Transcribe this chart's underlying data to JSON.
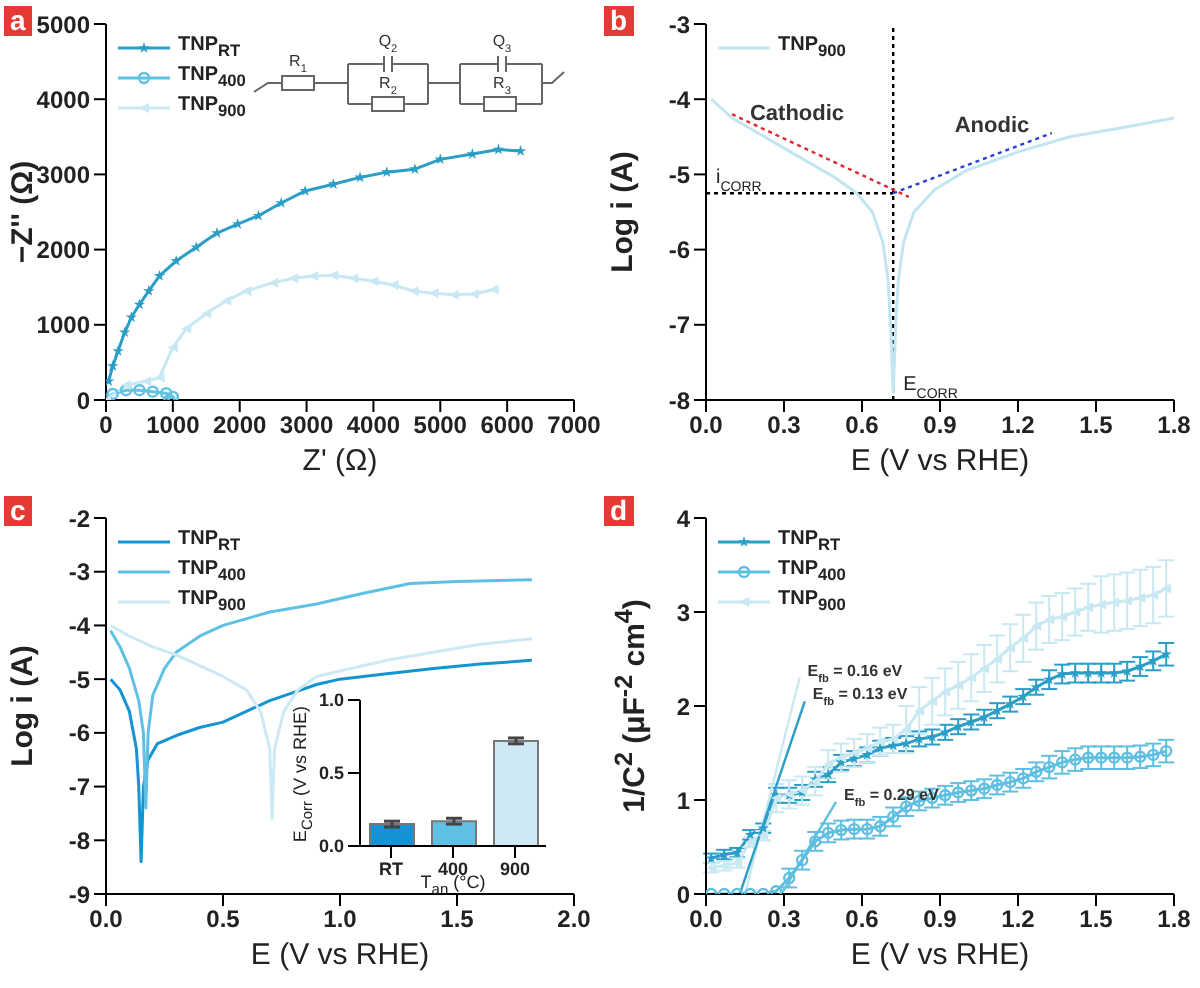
{
  "chart_data": [
    {
      "type": "line",
      "title": "a",
      "xlabel": "Z' (Ω)",
      "ylabel": "−Z'' (Ω)",
      "xlim": [
        0,
        7000
      ],
      "xticks": [
        0,
        1000,
        2000,
        3000,
        4000,
        5000,
        6000,
        7000
      ],
      "ylim": [
        0,
        5000
      ],
      "yticks": [
        0,
        1000,
        2000,
        3000,
        4000,
        5000
      ],
      "legend": "top left",
      "annotations": [
        "R$_{1}$",
        "Q$_{2}$",
        "R$_{2}$",
        "Q$_{3}$",
        "R$_{3}$"
      ],
      "series": [
        {
          "name": "TNP$_{RT}$",
          "color": "#2a9ec6",
          "marker": "star",
          "x": [
            40,
            100,
            180,
            280,
            380,
            500,
            640,
            800,
            1050,
            1350,
            1660,
            1970,
            2280,
            2620,
            2980,
            3400,
            3800,
            4200,
            4620,
            5000,
            5480,
            5870,
            6200
          ],
          "values": [
            250,
            450,
            650,
            900,
            1100,
            1270,
            1450,
            1650,
            1850,
            2030,
            2220,
            2340,
            2450,
            2620,
            2780,
            2870,
            2960,
            3030,
            3070,
            3200,
            3270,
            3330,
            3310
          ]
        },
        {
          "name": "TNP$_{400}$",
          "color": "#62c2e2",
          "marker": "circle",
          "x": [
            0,
            100,
            300,
            500,
            700,
            900,
            1000,
            950
          ],
          "values": [
            0,
            80,
            130,
            130,
            110,
            90,
            40,
            0
          ]
        },
        {
          "name": "TNP$_{900}$",
          "color": "#c8e9f3",
          "marker": "triangle",
          "x": [
            0,
            300,
            600,
            800,
            1000,
            1200,
            1500,
            1800,
            2100,
            2500,
            2800,
            3100,
            3400,
            3700,
            4000,
            4300,
            4600,
            4900,
            5200,
            5500,
            5800
          ],
          "values": [
            0,
            200,
            250,
            300,
            700,
            950,
            1150,
            1320,
            1450,
            1560,
            1620,
            1650,
            1660,
            1620,
            1580,
            1530,
            1450,
            1420,
            1400,
            1410,
            1470
          ]
        }
      ]
    },
    {
      "type": "line",
      "title": "b",
      "xlabel": "E (V vs RHE)",
      "ylabel": "Log i (A)",
      "xlim": [
        0,
        1.8
      ],
      "xticks": [
        {
          "value": 0,
          "label": "0.0"
        },
        0.3,
        0.6,
        0.9,
        1.2,
        1.5,
        1.8
      ],
      "ylim": [
        -8,
        -3
      ],
      "yticks": [
        -8,
        -7,
        -6,
        -5,
        -4,
        -3
      ],
      "legend": "top left",
      "annotations": [
        {
          "text": "Cathodic",
          "x": 0.35,
          "y": -4.6
        },
        {
          "text": "Anodic",
          "x": 1.1,
          "y": -4.75
        }
      ],
      "ref_lines": [
        {
          "axis": "x",
          "value": 0.72,
          "label": "E$_{CORR}$",
          "color": "#000000",
          "line_style": "dotted"
        },
        {
          "axis": "y",
          "value": -5.25,
          "label": "i$_{CORR}$",
          "color": "#000000",
          "line_style": "dotted"
        }
      ],
      "series": [
        {
          "name": "TNP$_{900}$",
          "color": "#c2e6f1",
          "x": [
            0.02,
            0.1,
            0.2,
            0.3,
            0.4,
            0.5,
            0.58,
            0.64,
            0.68,
            0.7,
            0.71,
            0.72,
            0.73,
            0.74,
            0.76,
            0.8,
            0.88,
            1.0,
            1.2,
            1.4,
            1.6,
            1.8
          ],
          "values": [
            -4.0,
            -4.25,
            -4.45,
            -4.65,
            -4.85,
            -5.05,
            -5.25,
            -5.5,
            -5.9,
            -6.4,
            -7.0,
            -7.9,
            -7.0,
            -6.4,
            -5.9,
            -5.5,
            -5.2,
            -4.95,
            -4.7,
            -4.5,
            -4.38,
            -4.25
          ]
        },
        {
          "color": "#e0282e",
          "line_style": "dotted",
          "x": [
            0.1,
            0.78
          ],
          "values": [
            -4.2,
            -5.3
          ]
        },
        {
          "color": "#2b3fd6",
          "line_style": "dotted",
          "x": [
            0.72,
            1.33
          ],
          "values": [
            -5.25,
            -4.45
          ]
        }
      ]
    },
    {
      "type": "line",
      "title": "c",
      "xlabel": "E (V vs RHE)",
      "ylabel": "Log i (A)",
      "xlim": [
        0,
        2
      ],
      "xticks": [
        {
          "value": 0,
          "label": "0.0"
        },
        0.5,
        {
          "value": 1,
          "label": "1.0"
        },
        1.5,
        {
          "value": 2,
          "label": "2.0"
        }
      ],
      "ylim": [
        -9,
        -2
      ],
      "yticks": [
        -9,
        -8,
        -7,
        -6,
        -5,
        -4,
        -3,
        -2
      ],
      "legend": "top left",
      "series": [
        {
          "name": "TNP$_{RT}$",
          "color": "#1494d2",
          "x": [
            0.02,
            0.06,
            0.1,
            0.13,
            0.14,
            0.15,
            0.16,
            0.18,
            0.22,
            0.3,
            0.4,
            0.5,
            0.6,
            0.7,
            0.8,
            0.9,
            1.0,
            1.2,
            1.4,
            1.6,
            1.82
          ],
          "values": [
            -5.0,
            -5.2,
            -5.6,
            -6.3,
            -7.0,
            -8.4,
            -7.0,
            -6.5,
            -6.2,
            -6.05,
            -5.9,
            -5.8,
            -5.6,
            -5.4,
            -5.25,
            -5.1,
            -5.0,
            -4.9,
            -4.8,
            -4.72,
            -4.65
          ]
        },
        {
          "name": "TNP$_{400}$",
          "color": "#5fc0e6",
          "x": [
            0.02,
            0.06,
            0.1,
            0.14,
            0.16,
            0.17,
            0.18,
            0.2,
            0.25,
            0.3,
            0.4,
            0.5,
            0.7,
            0.9,
            1.1,
            1.3,
            1.5,
            1.82
          ],
          "values": [
            -4.1,
            -4.4,
            -4.8,
            -5.4,
            -6.0,
            -7.4,
            -6.0,
            -5.3,
            -4.8,
            -4.5,
            -4.2,
            -4.0,
            -3.75,
            -3.6,
            -3.4,
            -3.22,
            -3.18,
            -3.15
          ]
        },
        {
          "name": "TNP$_{900}$",
          "color": "#cde9f3",
          "x": [
            0.02,
            0.1,
            0.2,
            0.3,
            0.4,
            0.5,
            0.6,
            0.66,
            0.7,
            0.71,
            0.72,
            0.76,
            0.82,
            0.9,
            1.0,
            1.2,
            1.4,
            1.6,
            1.82
          ],
          "values": [
            -4.0,
            -4.2,
            -4.4,
            -4.55,
            -4.75,
            -4.95,
            -5.2,
            -5.6,
            -6.3,
            -7.6,
            -6.3,
            -5.6,
            -5.2,
            -4.95,
            -4.85,
            -4.65,
            -4.5,
            -4.35,
            -4.25
          ]
        }
      ]
    },
    {
      "type": "bar",
      "xlabel": "T$_{an}$ (°C)",
      "ylabel": "E$_{Corr}$ (V vs RHE)",
      "categories": [
        "RT",
        "400",
        "900"
      ],
      "values": [
        0.15,
        0.17,
        0.72
      ],
      "errors": [
        0.02,
        0.02,
        0.02
      ],
      "colors": [
        "#1494d2",
        "#5fc0e6",
        "#cde9f3"
      ],
      "ylim": [
        0,
        1
      ],
      "yticks": [
        {
          "value": 0,
          "label": "0.0"
        },
        0.5,
        {
          "value": 1,
          "label": "1.0"
        }
      ]
    },
    {
      "type": "line",
      "title": "d",
      "xlabel": "E (V vs RHE)",
      "ylabel": "1/C$^{2}$ (μF$^{-2}$ cm$^{4}$)",
      "xlim": [
        0,
        1.8
      ],
      "xticks": [
        {
          "value": 0,
          "label": "0.0"
        },
        0.3,
        0.6,
        0.9,
        1.2,
        1.5,
        1.8
      ],
      "ylim": [
        0,
        4
      ],
      "yticks": [
        0,
        1,
        2,
        3,
        4
      ],
      "legend": "top left",
      "annotations": [
        {
          "text": "E$_{fb}$ = 0.16 eV",
          "x": 0.36,
          "y": 2.3
        },
        {
          "text": "E$_{fb}$ = 0.13 eV",
          "x": 0.38,
          "y": 2.05
        },
        {
          "text": "E$_{fb}$ = 0.29 eV",
          "x": 0.5,
          "y": 0.98
        }
      ],
      "x": [
        0.02,
        0.07,
        0.12,
        0.17,
        0.22,
        0.27,
        0.32,
        0.37,
        0.42,
        0.47,
        0.52,
        0.57,
        0.62,
        0.67,
        0.72,
        0.77,
        0.82,
        0.87,
        0.92,
        0.97,
        1.02,
        1.07,
        1.12,
        1.17,
        1.22,
        1.27,
        1.32,
        1.37,
        1.42,
        1.47,
        1.52,
        1.57,
        1.62,
        1.67,
        1.72,
        1.77
      ],
      "series": [
        {
          "name": "TNP$_{RT}$",
          "color": "#2a9ec6",
          "marker": "star",
          "values": [
            0.38,
            0.42,
            0.44,
            0.63,
            0.7,
            1.05,
            1.05,
            1.08,
            1.22,
            1.27,
            1.4,
            1.44,
            1.48,
            1.55,
            1.58,
            1.6,
            1.65,
            1.67,
            1.72,
            1.78,
            1.83,
            1.88,
            1.95,
            2.02,
            2.1,
            2.2,
            2.28,
            2.34,
            2.35,
            2.35,
            2.35,
            2.35,
            2.37,
            2.42,
            2.48,
            2.55
          ],
          "errors": [
            0.05,
            0.05,
            0.05,
            0.05,
            0.05,
            0.08,
            0.08,
            0.08,
            0.08,
            0.08,
            0.08,
            0.08,
            0.08,
            0.08,
            0.08,
            0.08,
            0.08,
            0.08,
            0.08,
            0.08,
            0.08,
            0.08,
            0.08,
            0.08,
            0.08,
            0.08,
            0.1,
            0.1,
            0.1,
            0.1,
            0.1,
            0.1,
            0.1,
            0.1,
            0.1,
            0.12
          ]
        },
        {
          "name": "TNP$_{400}$",
          "color": "#5fbfe0",
          "marker": "circle",
          "values": [
            0,
            0,
            0,
            0,
            0,
            0.03,
            0.17,
            0.36,
            0.56,
            0.65,
            0.68,
            0.69,
            0.69,
            0.72,
            0.82,
            0.93,
            0.99,
            1.02,
            1.05,
            1.08,
            1.1,
            1.12,
            1.16,
            1.19,
            1.23,
            1.3,
            1.35,
            1.4,
            1.43,
            1.45,
            1.45,
            1.45,
            1.45,
            1.46,
            1.48,
            1.52
          ],
          "errors": [
            null,
            null,
            null,
            null,
            null,
            null,
            0.1,
            0.1,
            0.1,
            0.1,
            0.1,
            0.1,
            0.1,
            0.1,
            0.1,
            0.1,
            0.1,
            0.1,
            0.1,
            0.1,
            0.1,
            0.1,
            0.1,
            0.1,
            0.1,
            0.1,
            0.12,
            0.12,
            0.12,
            0.12,
            0.12,
            0.12,
            0.12,
            0.12,
            0.12,
            0.12
          ]
        },
        {
          "name": "TNP$_{900}$",
          "color": "#c8e8f2",
          "marker": "triangle",
          "values": [
            0.28,
            0.3,
            0.33,
            0.55,
            0.62,
            1.02,
            1.06,
            1.1,
            1.2,
            1.38,
            1.45,
            1.5,
            1.55,
            1.62,
            1.65,
            1.75,
            1.95,
            2.05,
            2.15,
            2.22,
            2.3,
            2.4,
            2.5,
            2.62,
            2.72,
            2.85,
            2.92,
            2.95,
            3.0,
            3.05,
            3.08,
            3.1,
            3.12,
            3.15,
            3.18,
            3.25
          ],
          "errors": [
            0.05,
            0.05,
            0.05,
            0.05,
            0.05,
            0.15,
            0.15,
            0.15,
            0.15,
            0.15,
            0.15,
            0.15,
            0.15,
            0.15,
            0.15,
            0.25,
            0.25,
            0.25,
            0.25,
            0.25,
            0.25,
            0.25,
            0.25,
            0.25,
            0.25,
            0.25,
            0.25,
            0.25,
            0.25,
            0.25,
            0.3,
            0.3,
            0.3,
            0.3,
            0.3,
            0.3
          ]
        },
        {
          "color": "#c8e8f2",
          "x": [
            0.15,
            0.36
          ],
          "values": [
            0,
            2.3
          ]
        },
        {
          "color": "#2a9ec6",
          "x": [
            0.13,
            0.38
          ],
          "values": [
            0,
            2.05
          ]
        },
        {
          "color": "#5fbfe0",
          "x": [
            0.29,
            0.5
          ],
          "values": [
            0,
            0.98
          ]
        }
      ]
    }
  ]
}
